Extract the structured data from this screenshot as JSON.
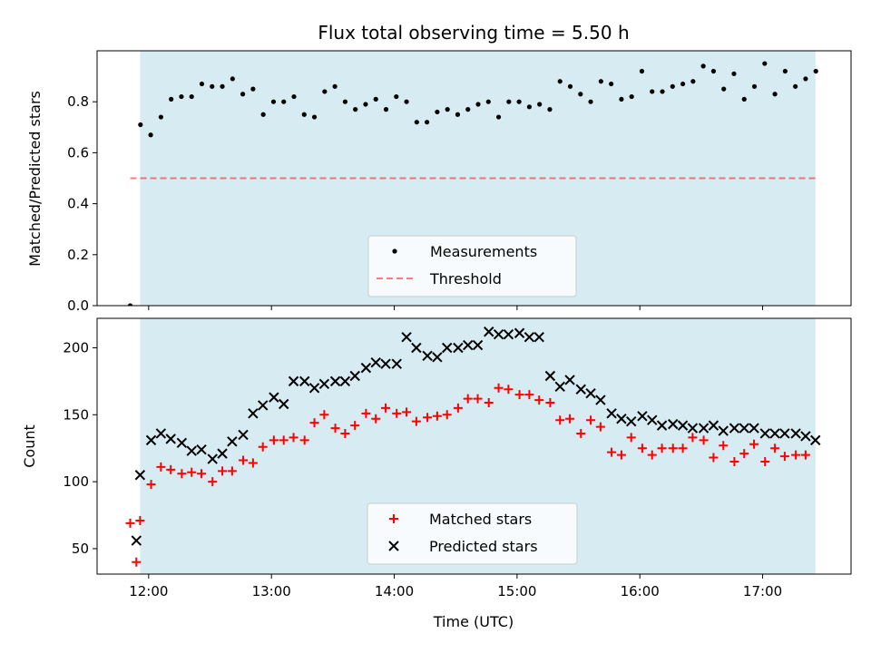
{
  "colors": {
    "background": "#ffffff",
    "shade": "#add8e6",
    "measurement": "#000000",
    "threshold": "#ff0000",
    "matched": "#ff0000",
    "predicted": "#000000",
    "legend_bg": "#ffffff"
  },
  "chart_data": [
    {
      "type": "scatter",
      "title": "Flux total observing time = 5.50 h",
      "xlabel": "",
      "ylabel": "Matched/Predicted stars",
      "ylim": [
        0,
        1.0
      ],
      "yticks": [
        0.0,
        0.2,
        0.4,
        0.6,
        0.8
      ],
      "ytick_labels": [
        "0.0",
        "0.2",
        "0.4",
        "0.6",
        "0.8"
      ],
      "xlim_hours": [
        11.58,
        17.72
      ],
      "shaded_region_hours": [
        11.93,
        17.43
      ],
      "threshold": {
        "value": 0.5,
        "from_hour": 11.85,
        "to_hour": 17.43,
        "label": "Threshold"
      },
      "legend": {
        "placement": "lower-center",
        "entries": [
          "Measurements",
          "Threshold"
        ]
      },
      "series": [
        {
          "name": "Measurements",
          "start_hour": 11.85,
          "step_minutes": 5,
          "values": [
            0.0,
            0.71,
            0.67,
            0.74,
            0.81,
            0.82,
            0.82,
            0.87,
            0.86,
            0.86,
            0.89,
            0.83,
            0.85,
            0.75,
            0.8,
            0.8,
            0.82,
            0.75,
            0.74,
            0.84,
            0.86,
            0.8,
            0.77,
            0.79,
            0.81,
            0.77,
            0.82,
            0.8,
            0.72,
            0.72,
            0.76,
            0.77,
            0.75,
            0.77,
            0.79,
            0.8,
            0.74,
            0.8,
            0.8,
            0.78,
            0.79,
            0.77,
            0.88,
            0.86,
            0.83,
            0.8,
            0.88,
            0.87,
            0.81,
            0.82,
            0.92,
            0.84,
            0.84,
            0.86,
            0.87,
            0.88,
            0.94,
            0.92,
            0.85,
            0.91,
            0.81,
            0.86,
            0.95,
            0.83,
            0.92,
            0.86,
            0.89,
            0.92
          ]
        }
      ]
    },
    {
      "type": "scatter",
      "title": "",
      "xlabel": "Time (UTC)",
      "ylabel": "Count",
      "ylim": [
        31,
        222
      ],
      "yticks": [
        50,
        100,
        150,
        200
      ],
      "ytick_labels": [
        "50",
        "100",
        "150",
        "200"
      ],
      "xticks_hours": [
        12,
        13,
        14,
        15,
        16,
        17
      ],
      "xtick_labels": [
        "12:00",
        "13:00",
        "14:00",
        "15:00",
        "16:00",
        "17:00"
      ],
      "xlim_hours": [
        11.58,
        17.72
      ],
      "shaded_region_hours": [
        11.93,
        17.43
      ],
      "legend": {
        "placement": "lower-center",
        "entries": [
          "Matched stars",
          "Predicted stars"
        ]
      },
      "series": [
        {
          "name": "Matched stars",
          "points": [
            [
              11.85,
              69
            ],
            [
              11.9,
              40
            ],
            [
              11.93,
              71
            ],
            [
              12.02,
              98
            ],
            [
              12.1,
              111
            ],
            [
              12.18,
              109
            ],
            [
              12.27,
              106
            ],
            [
              12.35,
              107
            ],
            [
              12.43,
              106
            ],
            [
              12.52,
              100
            ],
            [
              12.6,
              108
            ],
            [
              12.68,
              108
            ],
            [
              12.77,
              116
            ],
            [
              12.85,
              114
            ],
            [
              12.93,
              126
            ],
            [
              13.02,
              131
            ],
            [
              13.1,
              131
            ],
            [
              13.18,
              133
            ],
            [
              13.27,
              131
            ],
            [
              13.35,
              144
            ],
            [
              13.43,
              150
            ],
            [
              13.52,
              140
            ],
            [
              13.6,
              136
            ],
            [
              13.68,
              142
            ],
            [
              13.77,
              151
            ],
            [
              13.85,
              147
            ],
            [
              13.93,
              155
            ],
            [
              14.02,
              151
            ],
            [
              14.1,
              152
            ],
            [
              14.18,
              145
            ],
            [
              14.27,
              148
            ],
            [
              14.35,
              149
            ],
            [
              14.43,
              150
            ],
            [
              14.52,
              155
            ],
            [
              14.6,
              162
            ],
            [
              14.68,
              162
            ],
            [
              14.77,
              159
            ],
            [
              14.85,
              170
            ],
            [
              14.93,
              169
            ],
            [
              15.02,
              165
            ],
            [
              15.1,
              165
            ],
            [
              15.18,
              161
            ],
            [
              15.27,
              159
            ],
            [
              15.35,
              146
            ],
            [
              15.43,
              147
            ],
            [
              15.52,
              136
            ],
            [
              15.6,
              146
            ],
            [
              15.68,
              141
            ],
            [
              15.77,
              122
            ],
            [
              15.85,
              120
            ],
            [
              15.93,
              133
            ],
            [
              16.02,
              125
            ],
            [
              16.1,
              120
            ],
            [
              16.18,
              125
            ],
            [
              16.27,
              125
            ],
            [
              16.35,
              125
            ],
            [
              16.43,
              133
            ],
            [
              16.52,
              131
            ],
            [
              16.6,
              118
            ],
            [
              16.68,
              127
            ],
            [
              16.77,
              115
            ],
            [
              16.85,
              121
            ],
            [
              16.93,
              128
            ],
            [
              17.02,
              115
            ],
            [
              17.1,
              125
            ],
            [
              17.18,
              119
            ],
            [
              17.27,
              120
            ],
            [
              17.35,
              120
            ]
          ]
        },
        {
          "name": "Predicted stars",
          "points": [
            [
              11.9,
              56
            ],
            [
              11.93,
              105
            ],
            [
              12.02,
              131
            ],
            [
              12.1,
              136
            ],
            [
              12.18,
              132
            ],
            [
              12.27,
              129
            ],
            [
              12.35,
              123
            ],
            [
              12.43,
              124
            ],
            [
              12.52,
              117
            ],
            [
              12.6,
              121
            ],
            [
              12.68,
              130
            ],
            [
              12.77,
              135
            ],
            [
              12.85,
              151
            ],
            [
              12.93,
              157
            ],
            [
              13.02,
              163
            ],
            [
              13.1,
              158
            ],
            [
              13.18,
              175
            ],
            [
              13.27,
              175
            ],
            [
              13.35,
              170
            ],
            [
              13.43,
              173
            ],
            [
              13.52,
              175
            ],
            [
              13.6,
              175
            ],
            [
              13.68,
              179
            ],
            [
              13.77,
              185
            ],
            [
              13.85,
              189
            ],
            [
              13.93,
              188
            ],
            [
              14.02,
              188
            ],
            [
              14.1,
              208
            ],
            [
              14.18,
              200
            ],
            [
              14.27,
              194
            ],
            [
              14.35,
              193
            ],
            [
              14.43,
              200
            ],
            [
              14.52,
              200
            ],
            [
              14.6,
              202
            ],
            [
              14.68,
              202
            ],
            [
              14.77,
              212
            ],
            [
              14.85,
              210
            ],
            [
              14.93,
              210
            ],
            [
              15.02,
              211
            ],
            [
              15.1,
              208
            ],
            [
              15.18,
              208
            ],
            [
              15.27,
              179
            ],
            [
              15.35,
              171
            ],
            [
              15.43,
              176
            ],
            [
              15.52,
              169
            ],
            [
              15.6,
              166
            ],
            [
              15.68,
              161
            ],
            [
              15.77,
              151
            ],
            [
              15.85,
              147
            ],
            [
              15.93,
              145
            ],
            [
              16.02,
              149
            ],
            [
              16.1,
              146
            ],
            [
              16.18,
              142
            ],
            [
              16.27,
              143
            ],
            [
              16.35,
              142
            ],
            [
              16.43,
              140
            ],
            [
              16.52,
              140
            ],
            [
              16.6,
              142
            ],
            [
              16.68,
              138
            ],
            [
              16.77,
              140
            ],
            [
              16.85,
              140
            ],
            [
              16.93,
              140
            ],
            [
              17.02,
              136
            ],
            [
              17.1,
              136
            ],
            [
              17.18,
              136
            ],
            [
              17.27,
              136
            ],
            [
              17.35,
              134
            ],
            [
              17.43,
              131
            ]
          ]
        }
      ]
    }
  ]
}
